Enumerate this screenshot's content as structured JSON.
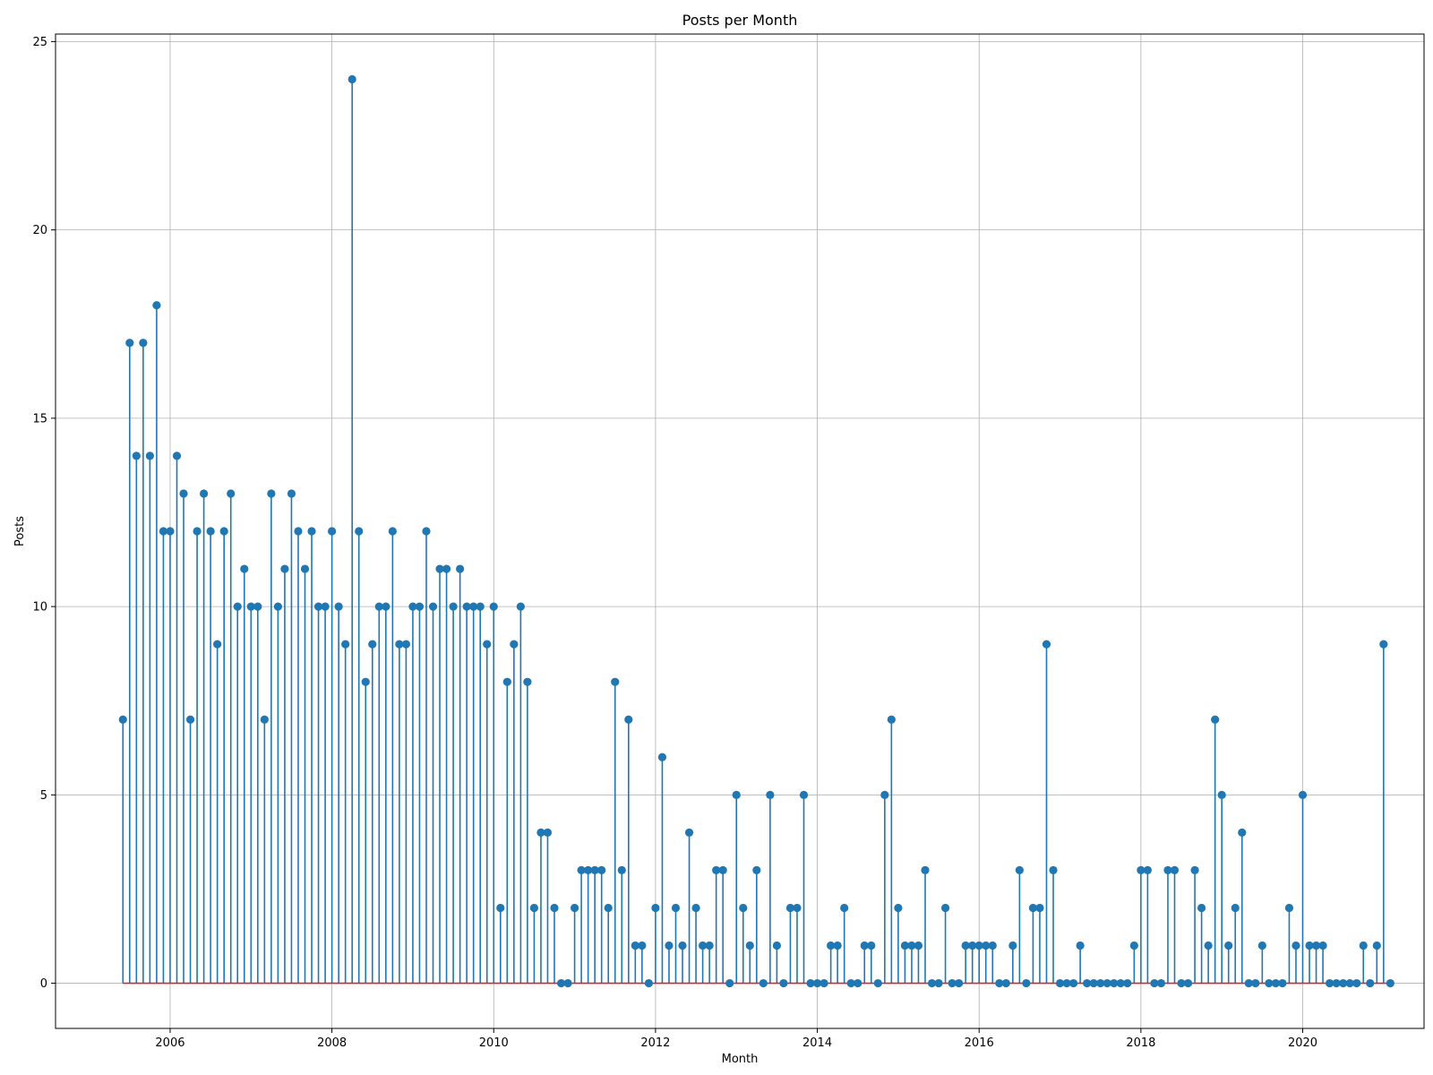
{
  "chart_data": {
    "type": "stem",
    "title": "Posts per Month",
    "xlabel": "Month",
    "ylabel": "Posts",
    "grid": true,
    "legend": "none",
    "x_start": "2005-06",
    "y": [
      7,
      17,
      14,
      17,
      14,
      18,
      12,
      12,
      14,
      13,
      7,
      12,
      13,
      12,
      9,
      12,
      13,
      10,
      11,
      10,
      10,
      7,
      13,
      10,
      11,
      13,
      12,
      11,
      12,
      10,
      10,
      12,
      10,
      9,
      24,
      12,
      8,
      9,
      10,
      10,
      12,
      9,
      9,
      10,
      10,
      12,
      10,
      11,
      11,
      10,
      11,
      10,
      10,
      10,
      9,
      10,
      2,
      8,
      9,
      10,
      8,
      2,
      4,
      4,
      2,
      0,
      0,
      2,
      3,
      3,
      3,
      3,
      2,
      8,
      3,
      7,
      1,
      1,
      0,
      2,
      6,
      1,
      2,
      1,
      4,
      2,
      1,
      1,
      3,
      3,
      0,
      5,
      2,
      1,
      3,
      0,
      5,
      1,
      0,
      2,
      2,
      5,
      0,
      0,
      0,
      1,
      1,
      2,
      0,
      0,
      1,
      1,
      0,
      5,
      7,
      2,
      1,
      1,
      1,
      3,
      0,
      0,
      2,
      0,
      0,
      1,
      1,
      1,
      1,
      1,
      0,
      0,
      1,
      3,
      0,
      2,
      2,
      9,
      3,
      0,
      0,
      0,
      1,
      0,
      0,
      0,
      0,
      0,
      0,
      0,
      1,
      3,
      3,
      0,
      0,
      3,
      3,
      0,
      0,
      3,
      2,
      1,
      7,
      5,
      1,
      2,
      4,
      0,
      0,
      1,
      0,
      0,
      0,
      2,
      1,
      5,
      1,
      1,
      1,
      0,
      0,
      0,
      0,
      0,
      1,
      0,
      1,
      9,
      0
    ],
    "xlim": [
      "2004-08",
      "2021-07"
    ],
    "ylim": [
      -1.2,
      25.2
    ],
    "x_ticks": [
      "2006",
      "2008",
      "2010",
      "2012",
      "2014",
      "2016",
      "2018",
      "2020"
    ],
    "y_ticks": [
      "0",
      "5",
      "10",
      "15",
      "20",
      "25"
    ],
    "colors": {
      "stem": "#1f77b4",
      "marker": "#1f77b4",
      "baseline": "#d62728",
      "grid": "#b0b0b0"
    }
  }
}
